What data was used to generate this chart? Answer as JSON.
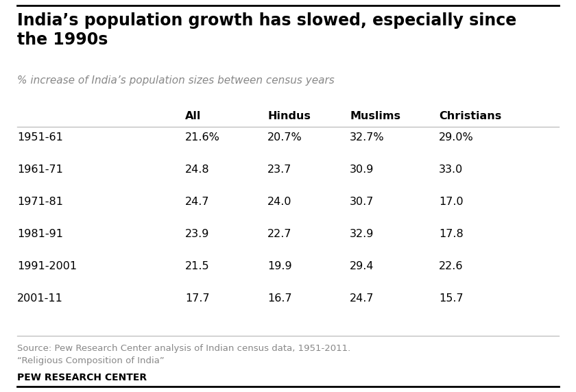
{
  "title": "India’s population growth has slowed, especially since\nthe 1990s",
  "subtitle": "% increase of India’s population sizes between census years",
  "columns": [
    "All",
    "Hindus",
    "Muslims",
    "Christians"
  ],
  "rows": [
    {
      "period": "1951-61",
      "values": [
        "21.6%",
        "20.7%",
        "32.7%",
        "29.0%"
      ]
    },
    {
      "period": "1961-71",
      "values": [
        "24.8",
        "23.7",
        "30.9",
        "33.0"
      ]
    },
    {
      "period": "1971-81",
      "values": [
        "24.7",
        "24.0",
        "30.7",
        "17.0"
      ]
    },
    {
      "period": "1981-91",
      "values": [
        "23.9",
        "22.7",
        "32.9",
        "17.8"
      ]
    },
    {
      "period": "1991-2001",
      "values": [
        "21.5",
        "19.9",
        "29.4",
        "22.6"
      ]
    },
    {
      "period": "2001-11",
      "values": [
        "17.7",
        "16.7",
        "24.7",
        "15.7"
      ]
    }
  ],
  "source_line1": "Source: Pew Research Center analysis of Indian census data, 1951-2011.",
  "source_line2": "“Religious Composition of India”",
  "branding": "PEW RESEARCH CENTER",
  "bg_color": "#ffffff",
  "title_color": "#000000",
  "subtitle_color": "#888888",
  "header_color": "#000000",
  "row_label_color": "#000000",
  "cell_color": "#000000",
  "source_color": "#888888",
  "brand_color": "#000000",
  "divider_color": "#bbbbbb",
  "top_line_color": "#000000"
}
